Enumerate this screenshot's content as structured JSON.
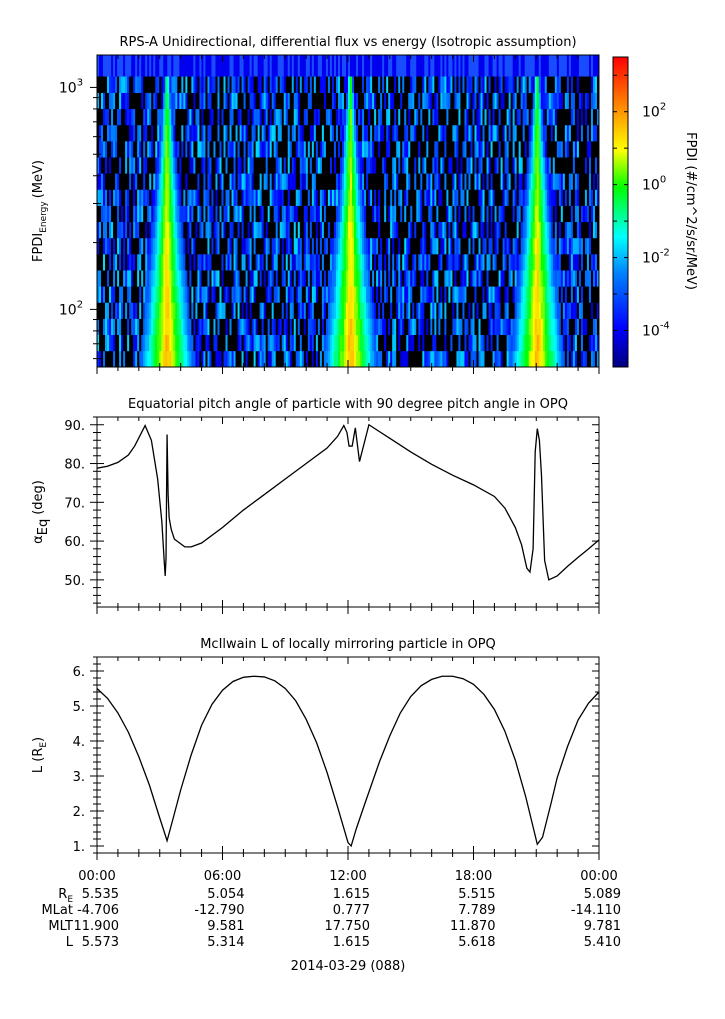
{
  "panels": {
    "spectrogram": {
      "title": "RPS-A Unidirectional, differential flux vs energy (Isotropic assumption)",
      "ylabel_main": "FPDI",
      "ylabel_sub": "Energy",
      "ylabel_unit": "(MeV)",
      "yticks": [
        {
          "base": "10",
          "exp": "3",
          "value": 1000
        },
        {
          "base": "10",
          "exp": "2",
          "value": 100
        }
      ],
      "colorbar": {
        "label": "FPDI (#/cm^2/s/sr/MeV)",
        "ticks": [
          {
            "base": "10",
            "exp": "2",
            "value": 100
          },
          {
            "base": "10",
            "exp": "0",
            "value": 1
          },
          {
            "base": "10",
            "exp": "-2",
            "value": 0.01
          },
          {
            "base": "10",
            "exp": "-4",
            "value": 0.0001
          }
        ]
      }
    },
    "pitch": {
      "title": "Equatorial pitch angle of particle with 90 degree pitch angle in OPQ",
      "ylabel_alpha": "α",
      "ylabel_sub": "Eq",
      "ylabel_unit": "(deg)",
      "yticks": [
        "90.",
        "80.",
        "70.",
        "60.",
        "50."
      ]
    },
    "lshell": {
      "title": "McIlwain L of locally mirroring particle in OPQ",
      "ylabel_main": "L (R",
      "ylabel_sub": "E",
      "ylabel_close": ")",
      "yticks": [
        "6.",
        "5.",
        "4.",
        "3.",
        "2.",
        "1."
      ]
    }
  },
  "xaxis": {
    "ticks": [
      "00:00",
      "06:00",
      "12:00",
      "18:00",
      "00:00"
    ],
    "ephemeris": [
      {
        "label": "R",
        "label_sub": "E",
        "values": [
          "5.535",
          "5.054",
          "1.615",
          "5.515",
          "5.089"
        ]
      },
      {
        "label": "MLat",
        "label_sub": "",
        "values": [
          "-4.706",
          "-12.790",
          "0.777",
          "7.789",
          "-14.110"
        ]
      },
      {
        "label": "MLT",
        "label_sub": "",
        "values": [
          "11.900",
          "9.581",
          "17.750",
          "11.870",
          "9.781"
        ]
      },
      {
        "label": "L",
        "label_sub": "",
        "values": [
          "5.573",
          "5.314",
          "1.615",
          "5.618",
          "5.410"
        ]
      }
    ],
    "date": "2014-03-29 (088)"
  },
  "chart_data": [
    {
      "type": "heatmap",
      "title": "RPS-A Unidirectional, differential flux vs energy (Isotropic assumption)",
      "ylabel": "FPDI_Energy (MeV)",
      "yscale": "log",
      "ylim": [
        55,
        1400
      ],
      "xlim": [
        "00:00",
        "24:00"
      ],
      "colorbar_label": "FPDI (#/cm^2/s/sr/MeV)",
      "color_range_log10": [
        -5,
        3.5
      ],
      "energy_channels": 18,
      "enhancement_times_hours": [
        3.35,
        12.12,
        21.05
      ],
      "colors": [
        "#00007f",
        "#0000ff",
        "#0080ff",
        "#00ffff",
        "#00ff00",
        "#ffff00",
        "#ff8000",
        "#ff0000"
      ]
    },
    {
      "type": "line",
      "title": "Equatorial pitch angle of particle with 90 degree pitch angle in OPQ",
      "ylabel": "α_Eq (deg)",
      "ylim": [
        43,
        92
      ],
      "x_hours": [
        0,
        0.5,
        1.0,
        1.5,
        1.8,
        2.3,
        2.6,
        2.9,
        3.1,
        3.2,
        3.26,
        3.3,
        3.35,
        3.4,
        3.45,
        3.55,
        3.7,
        4.2,
        4.5,
        5,
        6,
        7,
        8,
        9,
        10,
        11,
        11.5,
        11.8,
        11.95,
        12.05,
        12.2,
        12.35,
        12.55,
        13,
        14,
        15,
        16,
        17,
        18,
        19,
        19.5,
        20,
        20.3,
        20.55,
        20.7,
        20.85,
        20.95,
        21.05,
        21.15,
        21.25,
        21.4,
        21.6,
        22,
        22.5,
        23,
        23.5,
        24
      ],
      "y_deg": [
        78.8,
        79.3,
        80.3,
        82.2,
        84.5,
        89.8,
        86,
        76,
        65,
        56,
        51,
        55.5,
        87.5,
        72,
        66,
        63,
        60.5,
        58.5,
        58.5,
        59.5,
        63.5,
        68,
        72,
        76,
        80,
        84,
        87,
        89.8,
        88,
        84.5,
        84.5,
        89.2,
        80.5,
        90,
        86.5,
        83,
        79.8,
        77,
        74.5,
        71.5,
        68.5,
        63.5,
        59,
        53,
        52,
        58,
        83,
        89,
        86,
        77,
        55,
        50,
        51,
        53.5,
        55.8,
        58,
        60.3
      ]
    },
    {
      "type": "line",
      "title": "McIlwain L of locally mirroring particle in OPQ",
      "ylabel": "L (R_E)",
      "ylim": [
        0.8,
        6.4
      ],
      "x_hours": [
        0,
        0.5,
        1.0,
        1.5,
        2.0,
        2.5,
        3.0,
        3.35,
        3.6,
        4.0,
        4.5,
        5,
        5.5,
        6,
        6.5,
        7,
        7.5,
        8,
        8.5,
        9,
        9.5,
        10,
        10.5,
        11,
        11.5,
        12,
        12.15,
        12.4,
        12.8,
        13.5,
        14,
        14.5,
        15,
        15.5,
        16,
        16.5,
        17,
        17.5,
        18,
        18.5,
        19,
        19.5,
        20,
        20.5,
        21.05,
        21.3,
        21.7,
        22,
        22.5,
        23,
        23.5,
        24
      ],
      "y_L": [
        5.5,
        5.22,
        4.8,
        4.25,
        3.55,
        2.75,
        1.8,
        1.15,
        1.7,
        2.6,
        3.6,
        4.45,
        5.05,
        5.45,
        5.7,
        5.82,
        5.85,
        5.83,
        5.72,
        5.5,
        5.15,
        4.62,
        3.95,
        3.1,
        2.12,
        1.1,
        1.0,
        1.5,
        2.2,
        3.4,
        4.15,
        4.8,
        5.27,
        5.58,
        5.76,
        5.85,
        5.85,
        5.78,
        5.62,
        5.33,
        4.9,
        4.28,
        3.45,
        2.4,
        1.05,
        1.25,
        2.2,
        2.95,
        3.85,
        4.6,
        5.08,
        5.4
      ]
    }
  ]
}
